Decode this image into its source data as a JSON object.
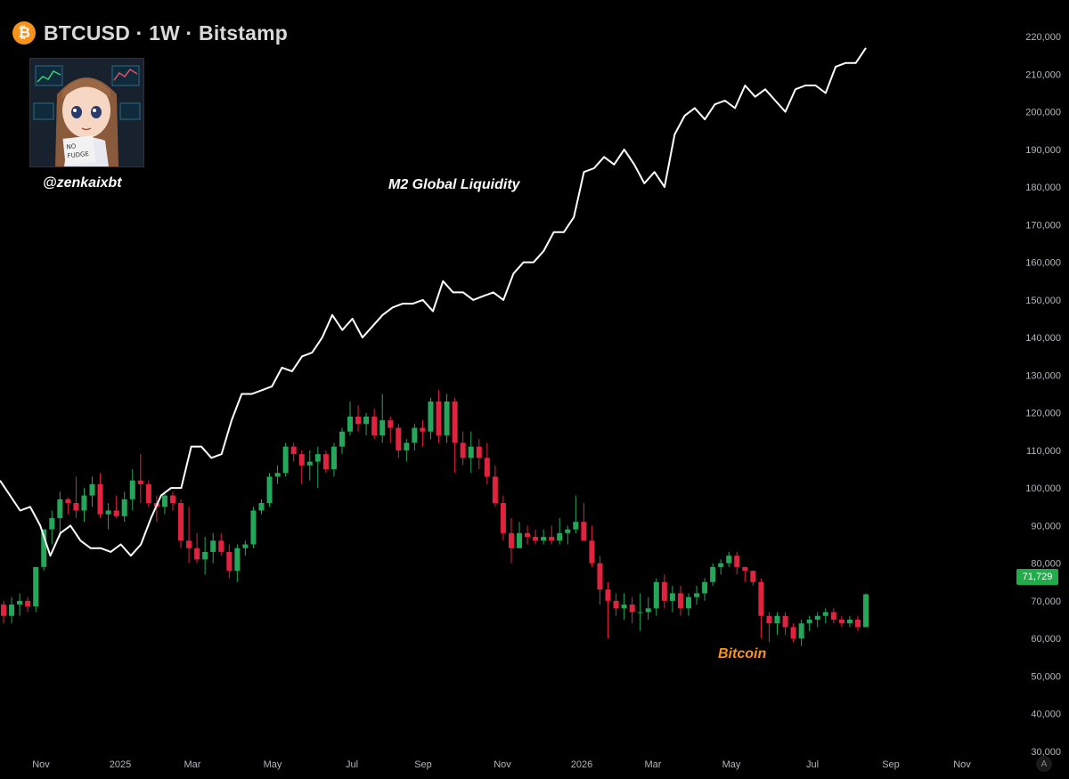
{
  "header": {
    "title": "BTCUSD · 1W · Bitstamp",
    "symbol_icon": "bitcoin-icon",
    "symbol_glyph": "₿"
  },
  "watermark": {
    "avatar_icon": "anime-avatar-icon",
    "avatar_sign": "NO FUDGE",
    "handle": "@zenkaixbt"
  },
  "annotations": {
    "m2": "M2 Global Liquidity",
    "btc": "Bitcoin"
  },
  "last_price": "71,729",
  "auto_button": "A",
  "colors": {
    "background": "#000000",
    "up": "#26a65b",
    "down": "#e0243f",
    "m2_line": "#ffffff",
    "price_tag": "#22ab4a",
    "btc_label": "#f7931a"
  },
  "chart_data": {
    "type": "candlestick+line",
    "y_axis": {
      "ticks": [
        "220,000",
        "210,000",
        "200,000",
        "190,000",
        "180,000",
        "170,000",
        "160,000",
        "150,000",
        "140,000",
        "130,000",
        "120,000",
        "110,000",
        "100,000",
        "90,000",
        "80,000",
        "70,000",
        "60,000",
        "50,000",
        "40,000",
        "30,000"
      ],
      "range": [
        25000,
        225000
      ]
    },
    "x_axis": {
      "ticks": [
        "Nov",
        "2025",
        "Mar",
        "May",
        "Jul",
        "Sep",
        "Nov",
        "2026",
        "Mar",
        "May",
        "Jul",
        "Sep",
        "Nov"
      ]
    },
    "series": [
      {
        "name": "M2 Global Liquidity",
        "type": "line",
        "values": [
          102000,
          98000,
          94000,
          95000,
          90000,
          82000,
          88000,
          90000,
          86000,
          84000,
          84000,
          83000,
          85000,
          82000,
          85000,
          92000,
          98000,
          100000,
          100000,
          111000,
          111000,
          108000,
          109000,
          118000,
          125000,
          125000,
          126000,
          127000,
          132000,
          131000,
          135000,
          136000,
          140000,
          146000,
          142000,
          145000,
          140000,
          143000,
          146000,
          148000,
          149000,
          149000,
          150000,
          147000,
          155000,
          152000,
          152000,
          150000,
          151000,
          152000,
          150000,
          157000,
          160000,
          160000,
          163000,
          168000,
          168000,
          172000,
          184000,
          185000,
          188000,
          186000,
          190000,
          186000,
          181000,
          184000,
          180000,
          194000,
          199000,
          201000,
          198000,
          202000,
          203000,
          201000,
          207000,
          204000,
          206000,
          203000,
          200000,
          206000,
          207000,
          207000,
          205000,
          212000,
          213000,
          213000,
          217000
        ]
      },
      {
        "name": "Bitcoin",
        "type": "candlestick",
        "ohlc": [
          [
            69000,
            70000,
            64000,
            66000
          ],
          [
            66000,
            71000,
            64000,
            69000
          ],
          [
            69000,
            72000,
            66000,
            70000
          ],
          [
            70000,
            71000,
            67000,
            68500
          ],
          [
            68500,
            79000,
            67000,
            79000
          ],
          [
            79000,
            89000,
            78000,
            89000
          ],
          [
            89000,
            94000,
            85000,
            92000
          ],
          [
            92000,
            99000,
            87000,
            97000
          ],
          [
            97000,
            97500,
            93000,
            96000
          ],
          [
            96000,
            103000,
            92000,
            94000
          ],
          [
            94000,
            100000,
            91000,
            98000
          ],
          [
            98000,
            103000,
            95000,
            101000
          ],
          [
            101000,
            104000,
            92000,
            93000
          ],
          [
            93000,
            96000,
            89000,
            94000
          ],
          [
            94000,
            98000,
            92000,
            92500
          ],
          [
            92500,
            99000,
            91000,
            97000
          ],
          [
            97000,
            105000,
            94000,
            102000
          ],
          [
            102000,
            109000,
            96000,
            101000
          ],
          [
            101000,
            102000,
            95000,
            96000
          ],
          [
            96000,
            98000,
            91000,
            95000
          ],
          [
            95000,
            99000,
            93000,
            98000
          ],
          [
            98000,
            99000,
            94000,
            96000
          ],
          [
            96000,
            97000,
            84000,
            86000
          ],
          [
            86000,
            95000,
            80000,
            84000
          ],
          [
            84000,
            88000,
            80000,
            81000
          ],
          [
            81000,
            87000,
            77000,
            83000
          ],
          [
            83000,
            88000,
            80000,
            86000
          ],
          [
            86000,
            88000,
            82000,
            83000
          ],
          [
            83000,
            85000,
            76000,
            78000
          ],
          [
            78000,
            85000,
            75000,
            84000
          ],
          [
            84000,
            86000,
            82000,
            85000
          ],
          [
            85000,
            95000,
            84000,
            94000
          ],
          [
            94000,
            97000,
            93000,
            96000
          ],
          [
            96000,
            104000,
            95000,
            103000
          ],
          [
            103000,
            106000,
            101000,
            104000
          ],
          [
            104000,
            112000,
            103000,
            111000
          ],
          [
            111000,
            112000,
            107000,
            109000
          ],
          [
            109000,
            110000,
            101000,
            106000
          ],
          [
            106000,
            110000,
            102000,
            107000
          ],
          [
            107000,
            111000,
            100000,
            109000
          ],
          [
            109000,
            110000,
            104000,
            105000
          ],
          [
            105000,
            112000,
            103000,
            111000
          ],
          [
            111000,
            116000,
            109000,
            115000
          ],
          [
            115000,
            123000,
            114000,
            119000
          ],
          [
            119000,
            122000,
            115000,
            117000
          ],
          [
            117000,
            120000,
            114000,
            119000
          ],
          [
            119000,
            121000,
            113000,
            114000
          ],
          [
            114000,
            125000,
            112000,
            118000
          ],
          [
            118000,
            119000,
            112000,
            116000
          ],
          [
            116000,
            117000,
            108000,
            110000
          ],
          [
            110000,
            113000,
            107000,
            112000
          ],
          [
            112000,
            117000,
            110000,
            116000
          ],
          [
            116000,
            118000,
            111000,
            115000
          ],
          [
            115000,
            124000,
            113000,
            123000
          ],
          [
            123000,
            126000,
            112000,
            114000
          ],
          [
            114000,
            125000,
            112000,
            123000
          ],
          [
            123000,
            124000,
            104000,
            112000
          ],
          [
            112000,
            115000,
            106000,
            108000
          ],
          [
            108000,
            115000,
            104000,
            111000
          ],
          [
            111000,
            113000,
            105000,
            108000
          ],
          [
            108000,
            112000,
            101000,
            103000
          ],
          [
            103000,
            106000,
            95000,
            96000
          ],
          [
            96000,
            98000,
            86000,
            88000
          ],
          [
            88000,
            92000,
            80000,
            84000
          ],
          [
            84000,
            91000,
            84000,
            88000
          ],
          [
            88000,
            90000,
            85000,
            87000
          ],
          [
            87000,
            89000,
            85000,
            86000
          ],
          [
            86000,
            89000,
            85000,
            87000
          ],
          [
            87000,
            90000,
            85000,
            86000
          ],
          [
            86000,
            92000,
            85000,
            88000
          ],
          [
            88000,
            90000,
            85000,
            89000
          ],
          [
            89000,
            98000,
            88000,
            91000
          ],
          [
            91000,
            96000,
            86000,
            86000
          ],
          [
            86000,
            90000,
            79000,
            80000
          ],
          [
            80000,
            82000,
            69000,
            73000
          ],
          [
            73000,
            75000,
            60000,
            70000
          ],
          [
            70000,
            72000,
            66000,
            68000
          ],
          [
            68000,
            72000,
            65000,
            69000
          ],
          [
            69000,
            71000,
            64000,
            67000
          ],
          [
            67000,
            72000,
            62000,
            67000
          ],
          [
            67000,
            71000,
            65000,
            68000
          ],
          [
            68000,
            76000,
            66000,
            75000
          ],
          [
            75000,
            77000,
            68000,
            70000
          ],
          [
            70000,
            74000,
            67000,
            72000
          ],
          [
            72000,
            74000,
            66000,
            68000
          ],
          [
            68000,
            72000,
            66000,
            71000
          ],
          [
            71000,
            74000,
            69000,
            72000
          ],
          [
            72000,
            76000,
            70000,
            75000
          ],
          [
            75000,
            80000,
            74000,
            79000
          ],
          [
            79000,
            81000,
            77000,
            80000
          ],
          [
            80000,
            83000,
            79000,
            82000
          ],
          [
            82000,
            83000,
            77000,
            79000
          ],
          [
            79000,
            79000,
            75000,
            78000
          ],
          [
            78000,
            78000,
            74000,
            75000
          ],
          [
            75000,
            76000,
            60000,
            66000
          ],
          [
            66000,
            67000,
            59000,
            64000
          ],
          [
            64000,
            67000,
            61000,
            66000
          ],
          [
            66000,
            67000,
            61000,
            63000
          ],
          [
            63000,
            64000,
            59000,
            60000
          ],
          [
            60000,
            65000,
            58000,
            64000
          ],
          [
            64000,
            66000,
            62000,
            65000
          ],
          [
            65000,
            67000,
            63000,
            66000
          ],
          [
            66000,
            68000,
            64000,
            67000
          ],
          [
            67000,
            68000,
            64000,
            65000
          ],
          [
            65000,
            66000,
            63000,
            64000
          ],
          [
            64000,
            66000,
            63000,
            65000
          ],
          [
            65000,
            66000,
            62000,
            63000
          ],
          [
            63000,
            72000,
            63000,
            71729
          ]
        ]
      }
    ]
  }
}
